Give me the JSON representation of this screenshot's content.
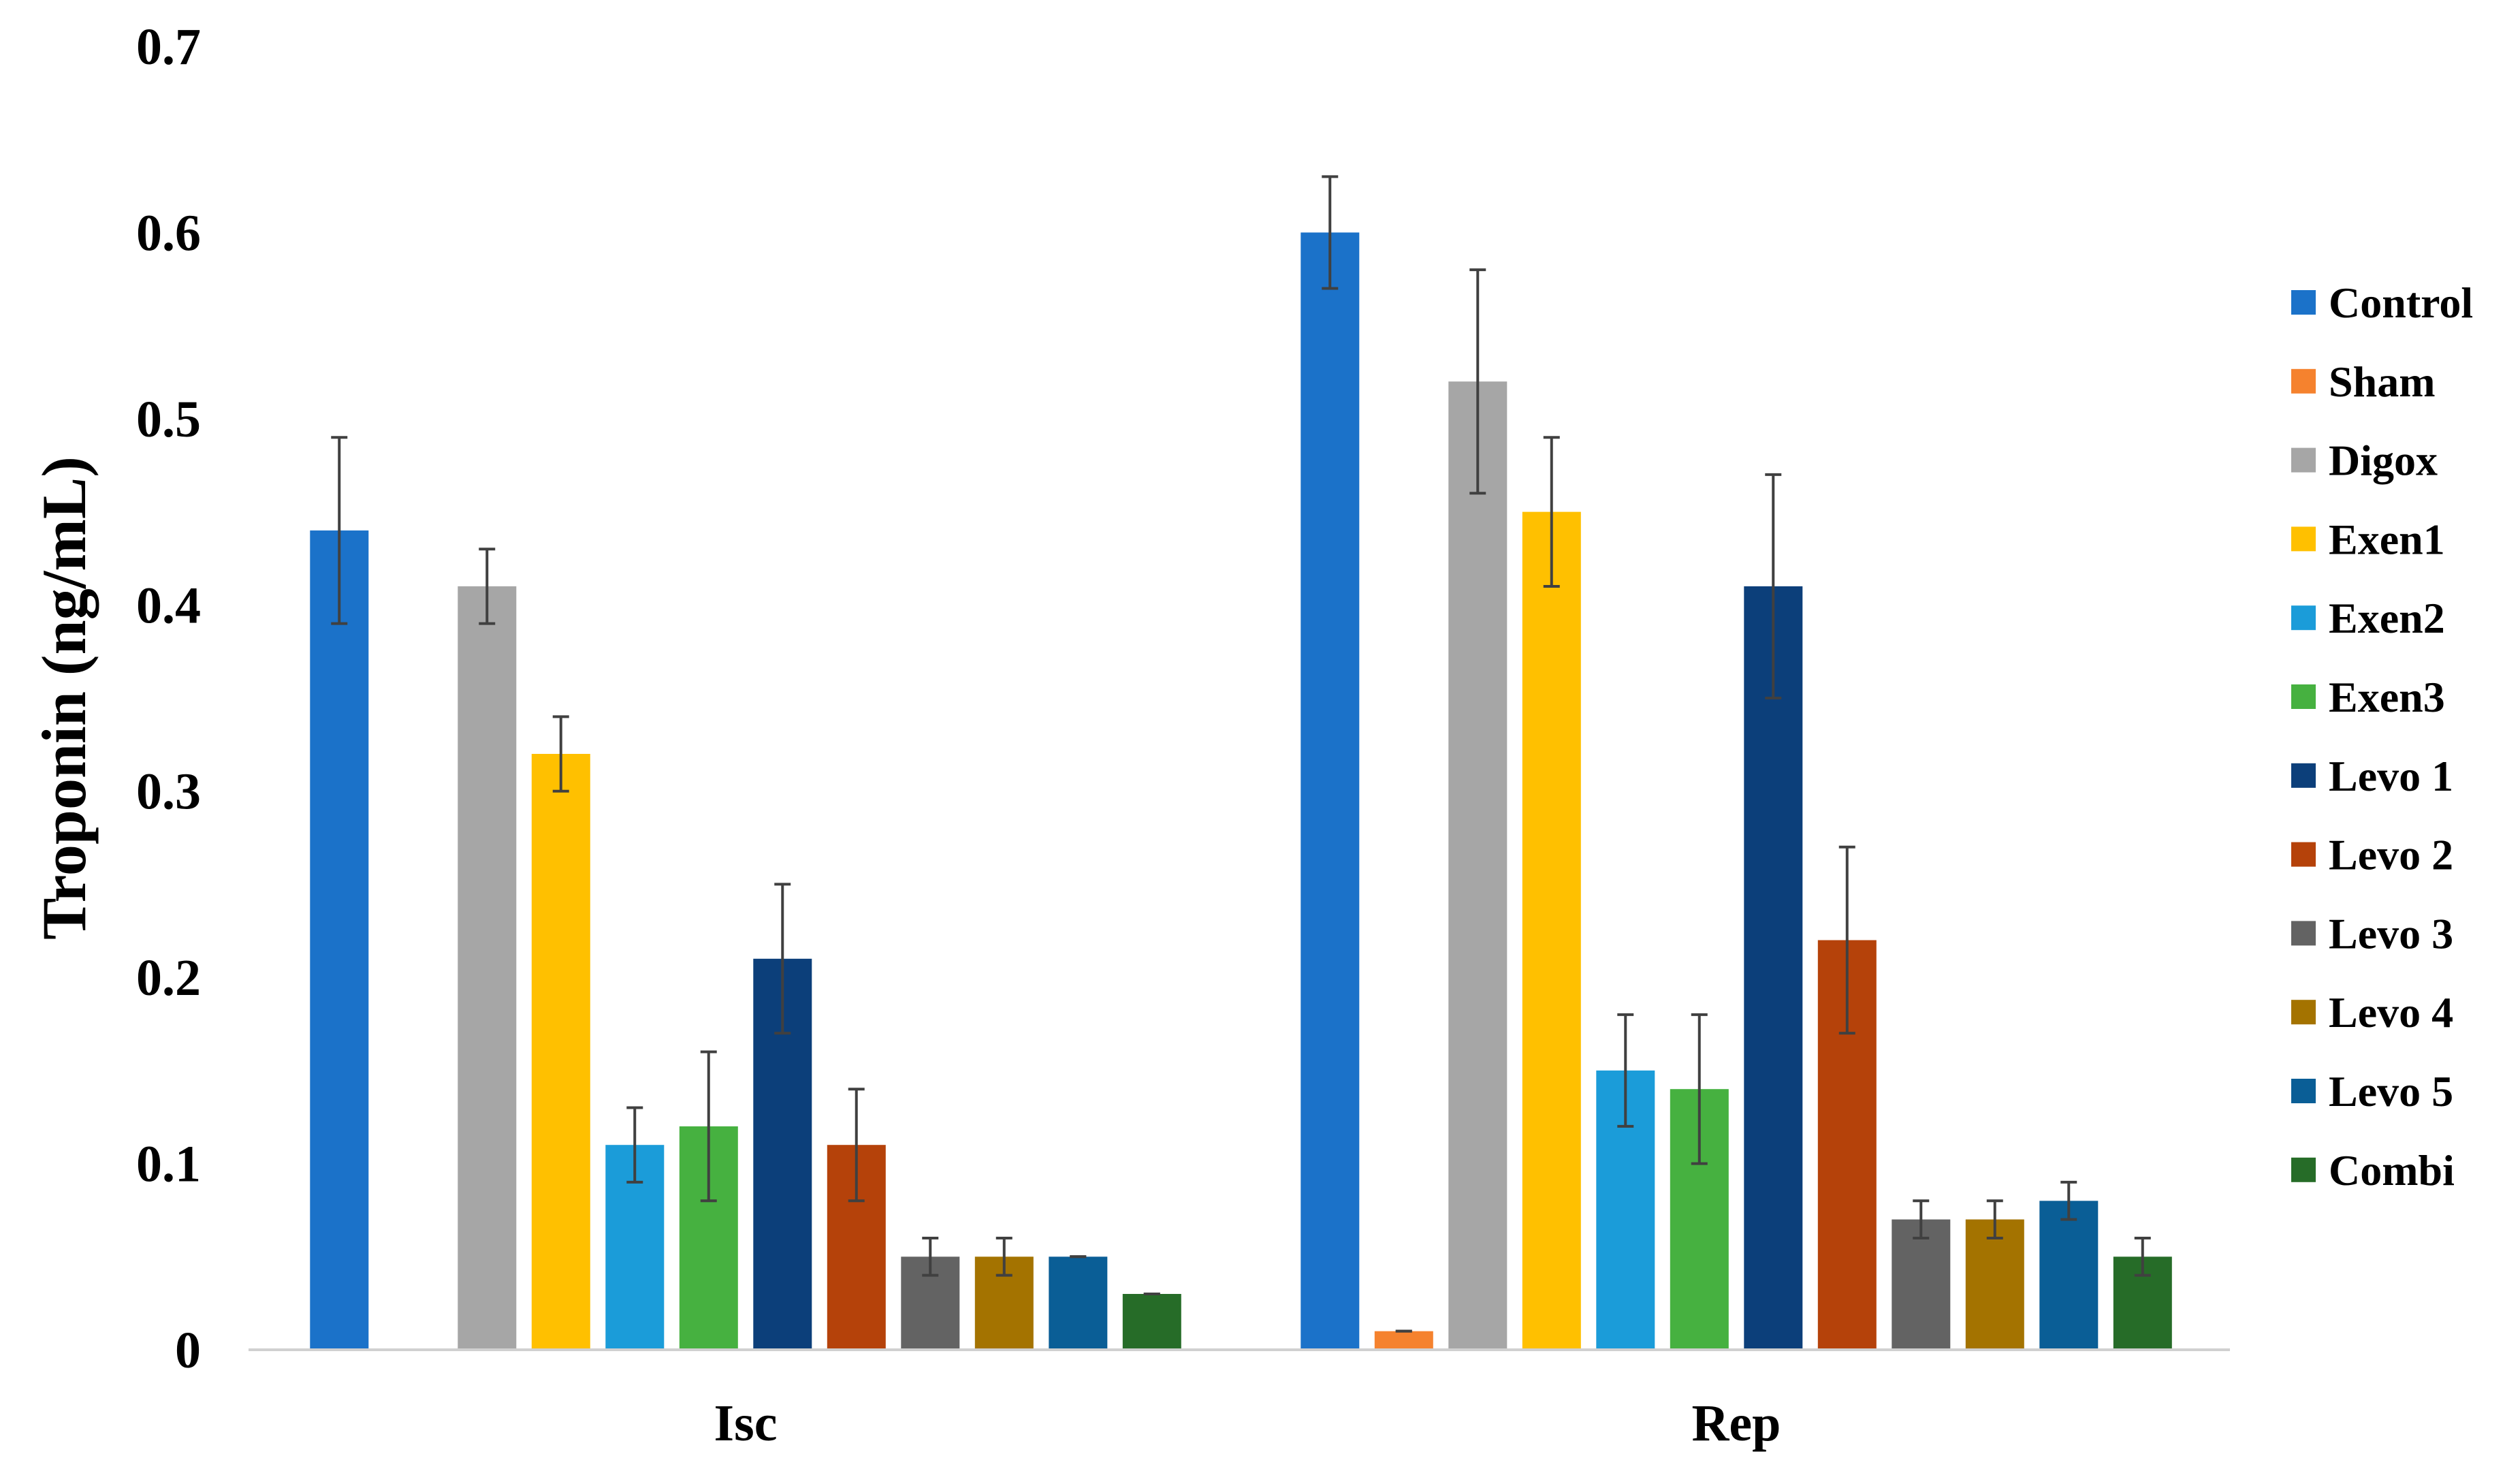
{
  "chart_data": {
    "type": "bar",
    "title": "",
    "xlabel": "",
    "ylabel": "Troponin (ng/mL)",
    "ylim": [
      0,
      0.7
    ],
    "yticks": [
      "0",
      "0.1",
      "0.2",
      "0.3",
      "0.4",
      "0.5",
      "0.6",
      "0.7"
    ],
    "grid": false,
    "legend_position": "right",
    "categories": [
      "Isc",
      "Rep"
    ],
    "series": [
      {
        "name": "Control",
        "color": "#1B72C9",
        "values": [
          0.44,
          0.6
        ],
        "errors": [
          0.05,
          0.03
        ]
      },
      {
        "name": "Sham",
        "color": "#F5822E",
        "values": [
          0,
          0.01
        ],
        "errors": [
          0,
          0
        ]
      },
      {
        "name": "Digox",
        "color": "#A6A6A6",
        "values": [
          0.41,
          0.52
        ],
        "errors": [
          0.02,
          0.06
        ]
      },
      {
        "name": "Exen1",
        "color": "#FFC000",
        "values": [
          0.32,
          0.45
        ],
        "errors": [
          0.02,
          0.04
        ]
      },
      {
        "name": "Exen2",
        "color": "#1B9CD9",
        "values": [
          0.11,
          0.15
        ],
        "errors": [
          0.02,
          0.03
        ]
      },
      {
        "name": "Exen3",
        "color": "#46B140",
        "values": [
          0.12,
          0.14
        ],
        "errors": [
          0.04,
          0.04
        ]
      },
      {
        "name": "Levo 1",
        "color": "#0C3F7A",
        "values": [
          0.21,
          0.41
        ],
        "errors": [
          0.04,
          0.06
        ]
      },
      {
        "name": "Levo 2",
        "color": "#B5420A",
        "values": [
          0.11,
          0.22
        ],
        "errors": [
          0.03,
          0.05
        ]
      },
      {
        "name": "Levo 3",
        "color": "#636363",
        "values": [
          0.05,
          0.07
        ],
        "errors": [
          0.01,
          0.01
        ]
      },
      {
        "name": "Levo 4",
        "color": "#A47300",
        "values": [
          0.05,
          0.07
        ],
        "errors": [
          0.01,
          0.01
        ]
      },
      {
        "name": "Levo 5",
        "color": "#0A5E96",
        "values": [
          0.05,
          0.08
        ],
        "errors": [
          0,
          0.01
        ]
      },
      {
        "name": "Combi",
        "color": "#266C28",
        "values": [
          0.03,
          0.05
        ],
        "errors": [
          0,
          0.01
        ]
      }
    ]
  }
}
